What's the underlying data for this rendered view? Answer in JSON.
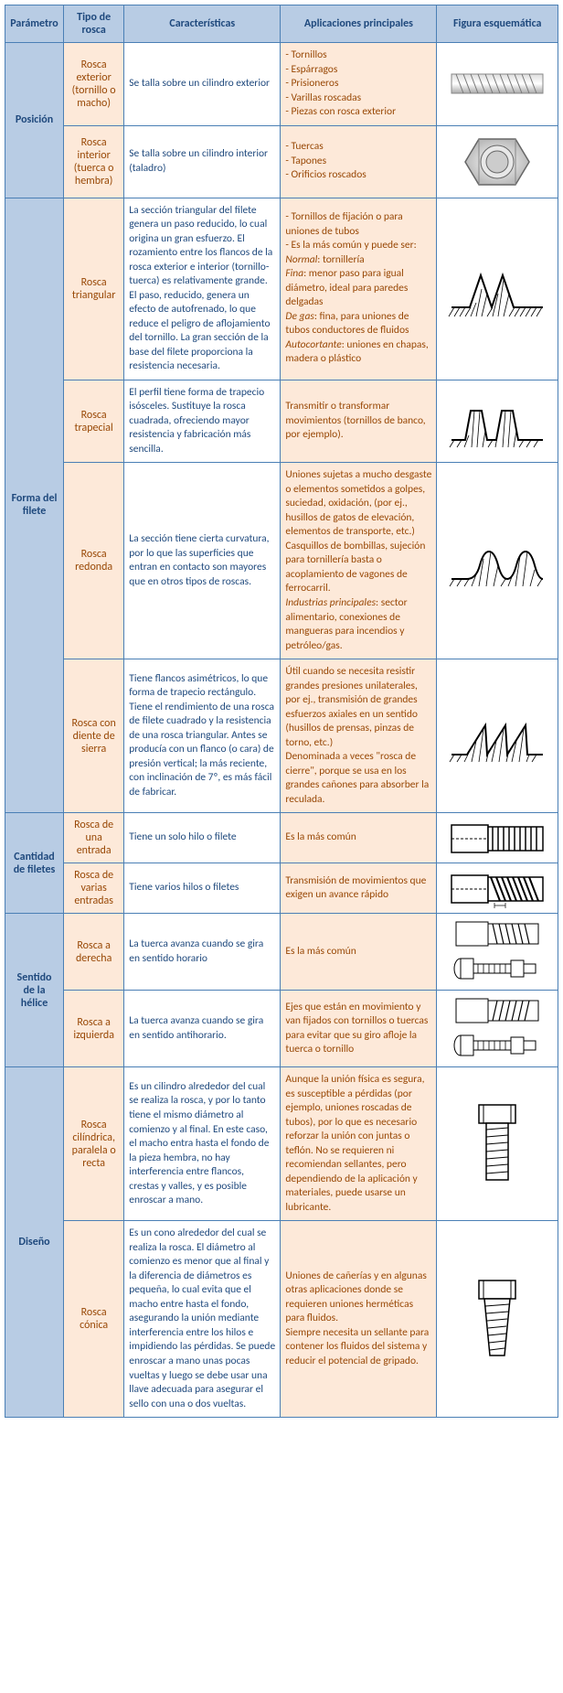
{
  "headers": {
    "c1": "Parámetro",
    "c2": "Tipo de rosca",
    "c3": "Características",
    "c4": "Aplicaciones principales",
    "c5": "Figura esquemática"
  },
  "groups": [
    {
      "param": "Posición",
      "rows": [
        {
          "tipo": "Rosca exterior (tornillo o macho)",
          "carac": "Se talla sobre un cilindro exterior",
          "aplic": "- Tornillos\n- Espárragos\n- Prisioneros\n- Varillas roscadas\n- Piezas con rosca exterior",
          "fig": "threaded-rod"
        },
        {
          "tipo": "Rosca interior (tuerca o hembra)",
          "carac": "Se talla sobre un cilindro interior (taladro)",
          "aplic": "- Tuercas\n- Tapones\n- Orificios roscados",
          "fig": "hex-nut"
        }
      ]
    },
    {
      "param": "Forma del filete",
      "rows": [
        {
          "tipo": "Rosca triangular",
          "carac": "La sección triangular del filete genera un paso reducido, lo cual origina un gran esfuerzo. El rozamiento entre los flancos de la rosca exterior e interior (tornillo-tuerca) es relativamente grande. El paso, reducido, genera un efecto de autofrenado, lo que reduce el peligro de aflojamiento del tornillo. La gran sección de la base del filete proporciona la resistencia necesaria.",
          "aplic": "- Tornillos de fijación o para uniones de tubos\n- Es la más común y puede ser:\nNormal: tornillería\nFina: menor paso para igual diámetro, ideal para paredes delgadas\nDe gas: fina, para uniones de tubos conductores de fluidos\nAutocortante: uniones en chapas, madera o plástico",
          "fig": "profile-triangular"
        },
        {
          "tipo": "Rosca trapecial",
          "carac": "El perfil tiene forma de trapecio isósceles. Sustituye la rosca cuadrada, ofreciendo mayor resistencia y fabricación más sencilla.",
          "aplic": "Transmitir o transformar movimientos (tornillos de banco, por ejemplo).",
          "fig": "profile-trapezoidal"
        },
        {
          "tipo": "Rosca redonda",
          "carac": "La sección tiene cierta curvatura, por lo que las superficies que entran en contacto son mayores que en otros tipos de roscas.",
          "aplic": "Uniones sujetas a mucho desgaste o elementos sometidos a golpes, suciedad, oxidación, (por ej., husillos de gatos de elevación, elementos de transporte, etc.)\nCasquillos de bombillas, sujeción para tornillería basta o acoplamiento de vagones de ferrocarril.\nIndustrias principales: sector alimentario, conexiones de mangueras para incendios y petróleo/gas.",
          "fig": "profile-round"
        },
        {
          "tipo": "Rosca con diente de sierra",
          "carac": "Tiene flancos asimétricos, lo que forma de trapecio rectángulo.\nTiene el rendimiento de una rosca de filete cuadrado y la resistencia de una rosca triangular. Antes se producía con un flanco (o cara) de presión vertical; la más reciente, con inclinación de 7º, es más fácil de fabricar.",
          "aplic": "Útil cuando se necesita resistir grandes presiones unilaterales, por ej., transmisión de grandes esfuerzos axiales en un sentido (husillos de prensas, pinzas de torno, etc.)\nDenominada a veces \"rosca de cierre\", porque se usa en los grandes cañones para absorber la reculada.",
          "fig": "profile-buttress"
        }
      ]
    },
    {
      "param": "Cantidad de filetes",
      "rows": [
        {
          "tipo": "Rosca de una entrada",
          "carac": "Tiene un solo hilo o filete",
          "aplic": "Es la más común",
          "fig": "single-start"
        },
        {
          "tipo": "Rosca de varias entradas",
          "carac": "Tiene varios hilos o filetes",
          "aplic": "Transmisión de movimientos que exigen un avance rápido",
          "fig": "multi-start"
        }
      ]
    },
    {
      "param": "Sentido de la hélice",
      "rows": [
        {
          "tipo": "Rosca a derecha",
          "carac": "La tuerca avanza cuando se gira en sentido horario",
          "aplic": "Es la más común",
          "fig": "right-hand"
        },
        {
          "tipo": "Rosca a izquierda",
          "carac": "La tuerca avanza cuando se gira en sentido antihorario.",
          "aplic": "Ejes que están en movimiento y van fijados con tornillos o tuercas para evitar que su giro afloje la tuerca o tornillo",
          "fig": "left-hand"
        }
      ]
    },
    {
      "param": "Diseño",
      "rows": [
        {
          "tipo": "Rosca cilíndrica, paralela o recta",
          "carac": "Es un cilindro alrededor del cual se realiza la rosca, y por lo tanto tiene el mismo diámetro al comienzo y al final. En este caso, el macho entra hasta el fondo de la pieza hembra, no hay interferencia entre flancos, crestas y valles, y es posible enroscar a mano.",
          "aplic": "Aunque la unión física es segura, es susceptible a pérdidas (por ejemplo, uniones roscadas de tubos), por lo que es necesario reforzar la unión con juntas o teflón. No se requieren ni recomiendan sellantes, pero dependiendo de la aplicación y materiales, puede usarse un lubricante.",
          "fig": "parallel-bolt"
        },
        {
          "tipo": "Rosca cónica",
          "carac": "Es un cono alrededor del cual se realiza la rosca. El diámetro al comienzo es menor que al final y la diferencia de diámetros es pequeña, lo cual evita que el macho entre hasta el fondo, asegurando la unión mediante interferencia entre los hilos e impidiendo las pérdidas. Se puede enroscar a mano unas pocas vueltas y luego se debe usar una llave adecuada para asegurar el sello con una o dos vueltas.",
          "aplic": "Uniones de cañerías y en algunas otras aplicaciones donde se requieren uniones herméticas para fluidos.\nSiempre necesita un sellante para contener los fluidos del sistema y reducir el potencial de gripado.",
          "fig": "tapered-bolt"
        }
      ]
    }
  ]
}
